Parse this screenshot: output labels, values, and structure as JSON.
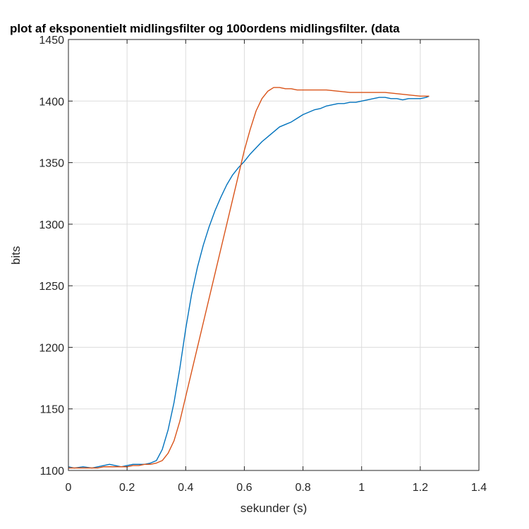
{
  "chart_data": {
    "type": "line",
    "title": "plot af eksponentielt midlingsfilter og 100ordens midlingsfilter. (data",
    "xlabel": "sekunder (s)",
    "ylabel": "bits",
    "xlim": [
      0,
      1.4
    ],
    "ylim": [
      1100,
      1450
    ],
    "xticks": [
      0,
      0.2,
      0.4,
      0.6,
      0.8,
      1,
      1.2,
      1.4
    ],
    "xtick_labels": [
      "0",
      "0.2",
      "0.4",
      "0.6",
      "0.8",
      "1",
      "1.2",
      "1.4"
    ],
    "yticks": [
      1100,
      1150,
      1200,
      1250,
      1300,
      1350,
      1400,
      1450
    ],
    "ytick_labels": [
      "1100",
      "1150",
      "1200",
      "1250",
      "1300",
      "1350",
      "1400",
      "1450"
    ],
    "grid": true,
    "legend": "none",
    "series": [
      {
        "color": "#0072BD",
        "x": [
          0,
          0.02,
          0.05,
          0.08,
          0.1,
          0.12,
          0.14,
          0.16,
          0.18,
          0.2,
          0.22,
          0.24,
          0.26,
          0.28,
          0.3,
          0.32,
          0.34,
          0.36,
          0.38,
          0.4,
          0.42,
          0.44,
          0.46,
          0.48,
          0.5,
          0.52,
          0.54,
          0.56,
          0.58,
          0.6,
          0.62,
          0.64,
          0.66,
          0.68,
          0.7,
          0.72,
          0.74,
          0.76,
          0.78,
          0.8,
          0.82,
          0.84,
          0.86,
          0.88,
          0.9,
          0.92,
          0.94,
          0.96,
          0.98,
          1.0,
          1.02,
          1.04,
          1.06,
          1.08,
          1.1,
          1.12,
          1.14,
          1.16,
          1.18,
          1.2,
          1.22,
          1.23
        ],
        "values": [
          1103,
          1102,
          1103,
          1102,
          1103,
          1104,
          1105,
          1104,
          1103,
          1104,
          1105,
          1105,
          1105,
          1106,
          1108,
          1117,
          1133,
          1155,
          1183,
          1215,
          1243,
          1265,
          1283,
          1298,
          1311,
          1322,
          1332,
          1340,
          1346,
          1351,
          1357,
          1362,
          1367,
          1371,
          1375,
          1379,
          1381,
          1383,
          1386,
          1389,
          1391,
          1393,
          1394,
          1396,
          1397,
          1398,
          1398,
          1399,
          1399,
          1400,
          1401,
          1402,
          1403,
          1403,
          1402,
          1402,
          1401,
          1402,
          1402,
          1402,
          1403,
          1404
        ]
      },
      {
        "color": "#D95319",
        "x": [
          0,
          0.02,
          0.05,
          0.08,
          0.1,
          0.12,
          0.15,
          0.18,
          0.2,
          0.22,
          0.24,
          0.26,
          0.28,
          0.3,
          0.32,
          0.34,
          0.36,
          0.38,
          0.4,
          0.42,
          0.44,
          0.46,
          0.48,
          0.5,
          0.52,
          0.54,
          0.56,
          0.58,
          0.6,
          0.62,
          0.64,
          0.66,
          0.68,
          0.7,
          0.72,
          0.74,
          0.76,
          0.78,
          0.8,
          0.84,
          0.88,
          0.92,
          0.96,
          1.0,
          1.04,
          1.08,
          1.12,
          1.16,
          1.2,
          1.23
        ],
        "values": [
          1102,
          1102,
          1102,
          1102,
          1102,
          1103,
          1103,
          1103,
          1103,
          1104,
          1104,
          1105,
          1105,
          1106,
          1108,
          1114,
          1124,
          1140,
          1160,
          1180,
          1200,
          1220,
          1240,
          1260,
          1280,
          1300,
          1320,
          1340,
          1360,
          1377,
          1392,
          1402,
          1408,
          1411,
          1411,
          1410,
          1410,
          1409,
          1409,
          1409,
          1409,
          1408,
          1407,
          1407,
          1407,
          1407,
          1406,
          1405,
          1404,
          1404
        ]
      }
    ]
  }
}
